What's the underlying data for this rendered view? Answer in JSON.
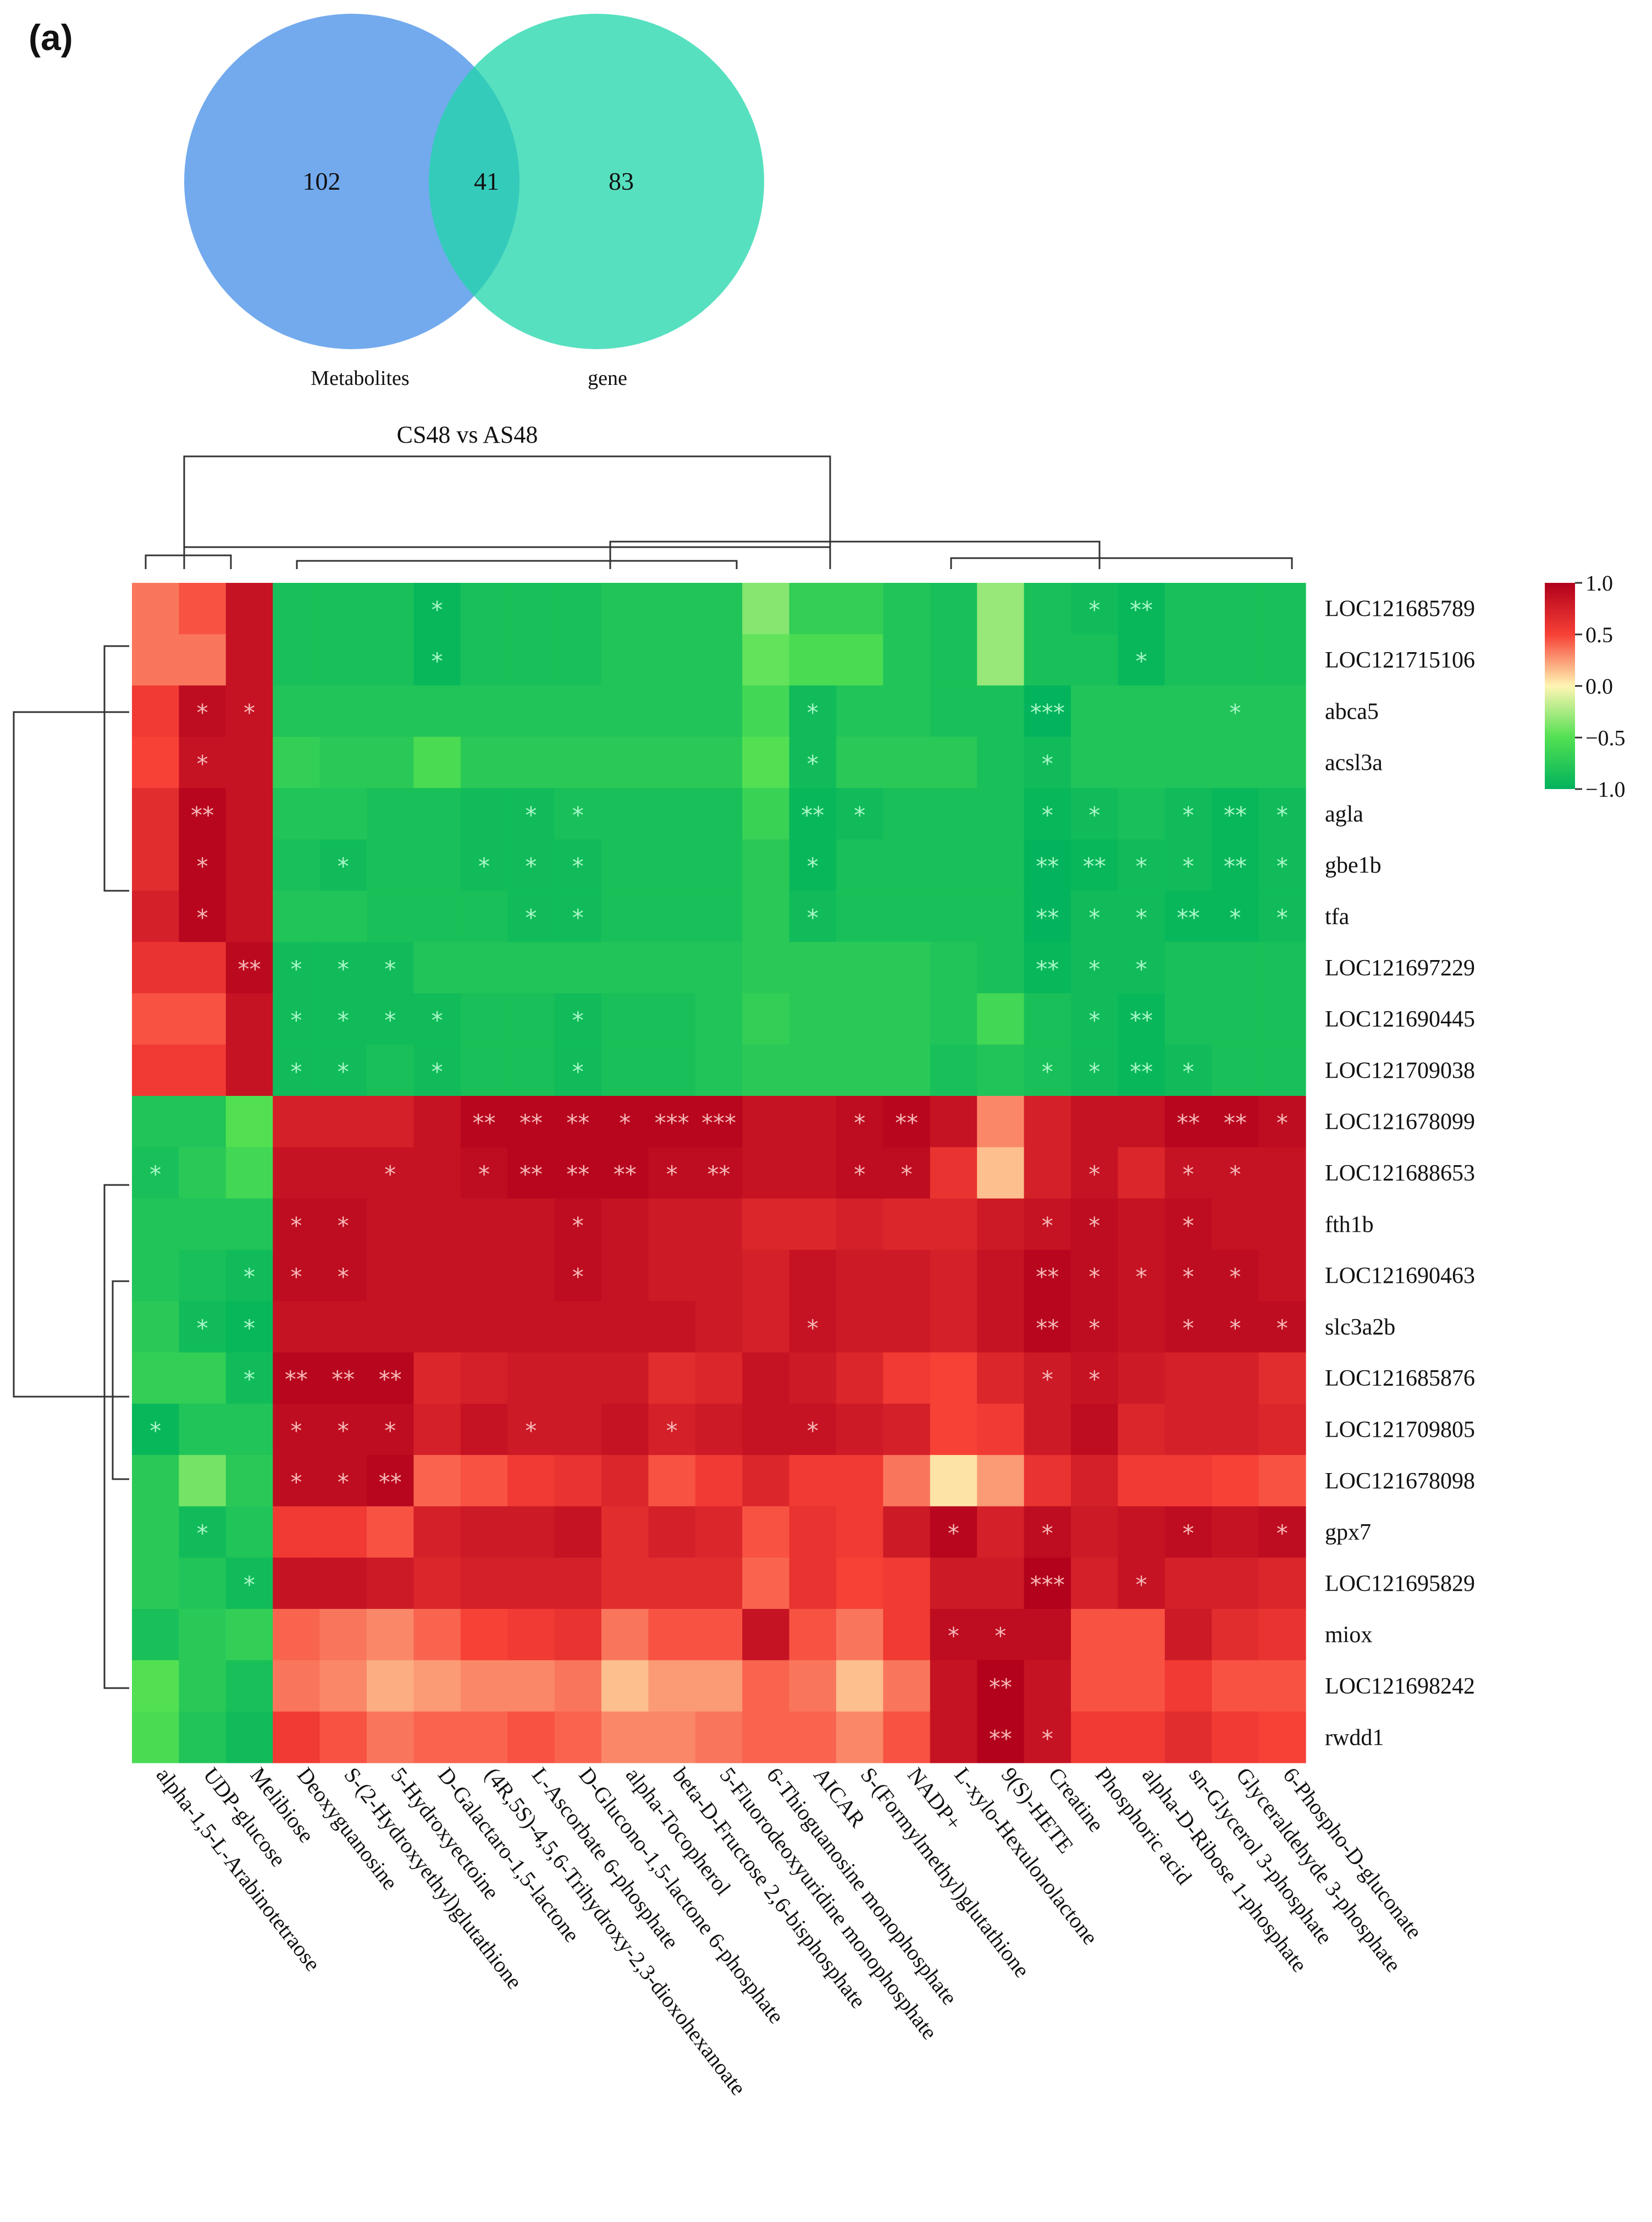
{
  "panel_label": "(a)",
  "venn": {
    "left_only": "102",
    "overlap": "41",
    "right_only": "83",
    "left_label": "Metabolites",
    "right_label": "gene",
    "left_color": "#5b9bea",
    "right_color": "#1fd6a9",
    "overlap_color": "#13b895"
  },
  "colors": {
    "scale_min": "#01b25c",
    "scale_low": "#52e052",
    "scale_mid": "#fff5b4",
    "scale_high": "#f74036",
    "scale_max": "#b0001b"
  },
  "chart_data": {
    "type": "heatmap",
    "title": "CS48 vs AS48",
    "colorbar": {
      "range": [
        -1.0,
        1.0
      ],
      "ticks": [
        "1.0",
        "0.5",
        "0.0",
        "−0.5",
        "−1.0"
      ]
    },
    "rows": [
      "LOC121685789",
      "LOC121715106",
      "abca5",
      "acsl3a",
      "agla",
      "gbe1b",
      "tfa",
      "LOC121697229",
      "LOC121690445",
      "LOC121709038",
      "LOC121678099",
      "LOC121688653",
      "fth1b",
      "LOC121690463",
      "slc3a2b",
      "LOC121685876",
      "LOC121709805",
      "LOC121678098",
      "gpx7",
      "LOC121695829",
      "miox",
      "LOC121698242",
      "rwdd1"
    ],
    "columns": [
      "alpha-1,5-L-Arabinotetraose",
      "UDP-glucose",
      "Melibiose",
      "Deoxyguanosine",
      "S-(2-Hydroxyethyl)glutathione",
      "5-Hydroxyectoine",
      "D-Galactaro-1,5-lactone",
      "(4R,5S)-4,5,6-Trihydroxy-2,3-dioxohexanoate",
      "L-Ascorbate 6-phosphate",
      "D-Glucono-1,5-lactone 6-phosphate",
      "alpha-Tocopherol",
      "beta-D-Fructose 2,6-bisphosphate",
      "5-Fluorodeoxyuridine monophosphate",
      "6-Thioguanosine monophosphate",
      "AICAR",
      "S-(Formylmethyl)glutathione",
      "NADP+",
      "L-xylo-Hexulonolactone",
      "9(S)-HETE",
      "Creatine",
      "Phosphoric acid",
      "alpha-D-Ribose 1-phosphate",
      "sn-Glycerol 3-phosphate",
      "Glyceraldehyde 3-phosphate",
      "6-Phospho-D-gluconate"
    ],
    "values": [
      [
        0.35,
        0.45,
        0.85,
        -0.85,
        -0.85,
        -0.85,
        -0.95,
        -0.85,
        -0.85,
        -0.85,
        -0.8,
        -0.8,
        -0.8,
        -0.35,
        -0.7,
        -0.7,
        -0.8,
        -0.85,
        -0.3,
        -0.85,
        -0.9,
        -0.95,
        -0.85,
        -0.85,
        -0.85
      ],
      [
        0.35,
        0.35,
        0.85,
        -0.85,
        -0.85,
        -0.85,
        -0.95,
        -0.85,
        -0.85,
        -0.85,
        -0.8,
        -0.8,
        -0.8,
        -0.45,
        -0.55,
        -0.55,
        -0.8,
        -0.85,
        -0.3,
        -0.85,
        -0.85,
        -0.95,
        -0.85,
        -0.85,
        -0.85
      ],
      [
        0.55,
        0.9,
        0.85,
        -0.8,
        -0.8,
        -0.8,
        -0.8,
        -0.8,
        -0.8,
        -0.8,
        -0.8,
        -0.8,
        -0.8,
        -0.6,
        -0.9,
        -0.8,
        -0.8,
        -0.85,
        -0.85,
        -0.98,
        -0.8,
        -0.8,
        -0.8,
        -0.8,
        -0.8
      ],
      [
        0.5,
        0.85,
        0.85,
        -0.7,
        -0.75,
        -0.75,
        -0.55,
        -0.75,
        -0.75,
        -0.75,
        -0.75,
        -0.75,
        -0.75,
        -0.5,
        -0.9,
        -0.75,
        -0.75,
        -0.75,
        -0.85,
        -0.9,
        -0.8,
        -0.8,
        -0.8,
        -0.8,
        -0.8
      ],
      [
        0.65,
        0.95,
        0.85,
        -0.8,
        -0.8,
        -0.85,
        -0.85,
        -0.9,
        -0.9,
        -0.85,
        -0.85,
        -0.85,
        -0.85,
        -0.65,
        -0.95,
        -0.9,
        -0.85,
        -0.85,
        -0.85,
        -0.95,
        -0.9,
        -0.85,
        -0.9,
        -0.95,
        -0.9
      ],
      [
        0.65,
        0.95,
        0.85,
        -0.85,
        -0.9,
        -0.85,
        -0.85,
        -0.9,
        -0.9,
        -0.9,
        -0.85,
        -0.85,
        -0.85,
        -0.75,
        -0.95,
        -0.85,
        -0.85,
        -0.85,
        -0.85,
        -0.98,
        -0.95,
        -0.9,
        -0.9,
        -0.95,
        -0.9
      ],
      [
        0.75,
        0.95,
        0.85,
        -0.8,
        -0.8,
        -0.85,
        -0.85,
        -0.85,
        -0.9,
        -0.9,
        -0.85,
        -0.85,
        -0.85,
        -0.75,
        -0.9,
        -0.85,
        -0.85,
        -0.85,
        -0.85,
        -0.98,
        -0.9,
        -0.9,
        -0.95,
        -0.95,
        -0.9
      ],
      [
        0.6,
        0.6,
        0.92,
        -0.9,
        -0.9,
        -0.9,
        -0.8,
        -0.8,
        -0.8,
        -0.8,
        -0.8,
        -0.8,
        -0.8,
        -0.75,
        -0.75,
        -0.75,
        -0.75,
        -0.8,
        -0.85,
        -0.95,
        -0.9,
        -0.9,
        -0.85,
        -0.85,
        -0.85
      ],
      [
        0.45,
        0.45,
        0.85,
        -0.9,
        -0.9,
        -0.9,
        -0.9,
        -0.85,
        -0.85,
        -0.9,
        -0.85,
        -0.85,
        -0.8,
        -0.7,
        -0.75,
        -0.75,
        -0.75,
        -0.8,
        -0.6,
        -0.85,
        -0.9,
        -0.95,
        -0.85,
        -0.85,
        -0.85
      ],
      [
        0.55,
        0.55,
        0.85,
        -0.9,
        -0.9,
        -0.85,
        -0.9,
        -0.85,
        -0.85,
        -0.9,
        -0.85,
        -0.85,
        -0.8,
        -0.75,
        -0.75,
        -0.75,
        -0.75,
        -0.85,
        -0.8,
        -0.85,
        -0.9,
        -0.95,
        -0.9,
        -0.85,
        -0.85
      ],
      [
        -0.8,
        -0.8,
        -0.5,
        0.75,
        0.75,
        0.75,
        0.85,
        0.95,
        0.95,
        0.95,
        0.95,
        0.95,
        0.95,
        0.85,
        0.85,
        0.9,
        0.95,
        0.85,
        0.3,
        0.75,
        0.85,
        0.85,
        0.95,
        0.95,
        0.9
      ],
      [
        -0.85,
        -0.75,
        -0.6,
        0.85,
        0.85,
        0.85,
        0.85,
        0.9,
        0.95,
        0.95,
        0.95,
        0.9,
        0.9,
        0.85,
        0.85,
        0.9,
        0.9,
        0.6,
        0.15,
        0.75,
        0.85,
        0.7,
        0.85,
        0.85,
        0.85
      ],
      [
        -0.8,
        -0.8,
        -0.8,
        0.9,
        0.9,
        0.85,
        0.85,
        0.85,
        0.85,
        0.9,
        0.85,
        0.8,
        0.8,
        0.7,
        0.7,
        0.75,
        0.7,
        0.7,
        0.8,
        0.85,
        0.9,
        0.85,
        0.9,
        0.85,
        0.85
      ],
      [
        -0.8,
        -0.85,
        -0.9,
        0.9,
        0.9,
        0.85,
        0.85,
        0.85,
        0.85,
        0.9,
        0.85,
        0.8,
        0.8,
        0.75,
        0.85,
        0.8,
        0.8,
        0.75,
        0.85,
        0.95,
        0.9,
        0.85,
        0.9,
        0.9,
        0.85
      ],
      [
        -0.75,
        -0.9,
        -0.95,
        0.85,
        0.85,
        0.85,
        0.85,
        0.85,
        0.85,
        0.85,
        0.85,
        0.85,
        0.8,
        0.75,
        0.85,
        0.8,
        0.8,
        0.75,
        0.85,
        0.95,
        0.9,
        0.85,
        0.9,
        0.9,
        0.9
      ],
      [
        -0.7,
        -0.7,
        -0.9,
        0.95,
        0.95,
        0.95,
        0.7,
        0.75,
        0.8,
        0.8,
        0.8,
        0.65,
        0.7,
        0.85,
        0.8,
        0.7,
        0.55,
        0.5,
        0.7,
        0.8,
        0.85,
        0.8,
        0.75,
        0.75,
        0.65
      ],
      [
        -0.95,
        -0.8,
        -0.8,
        0.9,
        0.9,
        0.9,
        0.75,
        0.85,
        0.8,
        0.8,
        0.85,
        0.75,
        0.8,
        0.85,
        0.85,
        0.8,
        0.75,
        0.5,
        0.55,
        0.8,
        0.9,
        0.7,
        0.75,
        0.75,
        0.7
      ],
      [
        -0.75,
        -0.4,
        -0.75,
        0.9,
        0.9,
        0.95,
        0.4,
        0.45,
        0.55,
        0.6,
        0.7,
        0.45,
        0.55,
        0.7,
        0.55,
        0.55,
        0.35,
        0.05,
        0.25,
        0.6,
        0.75,
        0.55,
        0.55,
        0.5,
        0.45
      ],
      [
        -0.75,
        -0.9,
        -0.8,
        0.55,
        0.55,
        0.45,
        0.75,
        0.8,
        0.8,
        0.85,
        0.65,
        0.75,
        0.7,
        0.45,
        0.6,
        0.55,
        0.8,
        0.95,
        0.75,
        0.9,
        0.8,
        0.85,
        0.9,
        0.85,
        0.9
      ],
      [
        -0.75,
        -0.8,
        -0.9,
        0.85,
        0.85,
        0.8,
        0.7,
        0.75,
        0.75,
        0.75,
        0.65,
        0.65,
        0.65,
        0.4,
        0.6,
        0.5,
        0.55,
        0.8,
        0.8,
        0.98,
        0.75,
        0.85,
        0.75,
        0.75,
        0.7
      ],
      [
        -0.85,
        -0.75,
        -0.7,
        0.4,
        0.35,
        0.3,
        0.4,
        0.5,
        0.55,
        0.6,
        0.35,
        0.45,
        0.45,
        0.85,
        0.45,
        0.35,
        0.55,
        0.9,
        0.9,
        0.9,
        0.45,
        0.45,
        0.8,
        0.65,
        0.6
      ],
      [
        -0.5,
        -0.75,
        -0.85,
        0.35,
        0.3,
        0.2,
        0.25,
        0.3,
        0.3,
        0.35,
        0.15,
        0.25,
        0.25,
        0.4,
        0.35,
        0.15,
        0.35,
        0.85,
        0.98,
        0.85,
        0.45,
        0.45,
        0.55,
        0.45,
        0.45
      ],
      [
        -0.55,
        -0.8,
        -0.9,
        0.55,
        0.45,
        0.35,
        0.4,
        0.4,
        0.45,
        0.4,
        0.3,
        0.3,
        0.35,
        0.4,
        0.4,
        0.3,
        0.45,
        0.85,
        0.98,
        0.85,
        0.55,
        0.55,
        0.65,
        0.55,
        0.5
      ]
    ],
    "significance": [
      [
        "",
        "",
        "",
        "",
        "",
        "",
        "*",
        "",
        "",
        "",
        "",
        "",
        "",
        "",
        "",
        "",
        "",
        "",
        "",
        "",
        "*",
        "**",
        "",
        "",
        ""
      ],
      [
        "",
        "",
        "",
        "",
        "",
        "",
        "*",
        "",
        "",
        "",
        "",
        "",
        "",
        "",
        "",
        "",
        "",
        "",
        "",
        "",
        "",
        "*",
        "",
        "",
        ""
      ],
      [
        "",
        "*",
        "*",
        "",
        "",
        "",
        "",
        "",
        "",
        "",
        "",
        "",
        "",
        "",
        "*",
        "",
        "",
        "",
        "",
        "***",
        "",
        "",
        "",
        "*",
        ""
      ],
      [
        "",
        "*",
        "",
        "",
        "",
        "",
        "",
        "",
        "",
        "",
        "",
        "",
        "",
        "",
        "*",
        "",
        "",
        "",
        "",
        "*",
        "",
        "",
        "",
        "",
        ""
      ],
      [
        "",
        "**",
        "",
        "",
        "",
        "",
        "",
        "",
        "*",
        "*",
        "",
        "",
        "",
        "",
        "**",
        "*",
        "",
        "",
        "",
        "*",
        "*",
        "",
        "*",
        "**",
        "*"
      ],
      [
        "",
        "*",
        "",
        "",
        "*",
        "",
        "",
        "*",
        "*",
        "*",
        "",
        "",
        "",
        "",
        "*",
        "",
        "",
        "",
        "",
        "**",
        "**",
        "*",
        "*",
        "**",
        "*"
      ],
      [
        "",
        "*",
        "",
        "",
        "",
        "",
        "",
        "",
        "*",
        "*",
        "",
        "",
        "",
        "",
        "*",
        "",
        "",
        "",
        "",
        "**",
        "*",
        "*",
        "**",
        "*",
        "*"
      ],
      [
        "",
        "",
        "**",
        "*",
        "*",
        "*",
        "",
        "",
        "",
        "",
        "",
        "",
        "",
        "",
        "",
        "",
        "",
        "",
        "",
        "**",
        "*",
        "*",
        "",
        "",
        ""
      ],
      [
        "",
        "",
        "",
        "*",
        "*",
        "*",
        "*",
        "",
        "",
        "*",
        "",
        "",
        "",
        "",
        "",
        "",
        "",
        "",
        "",
        "",
        "*",
        "**",
        "",
        "",
        ""
      ],
      [
        "",
        "",
        "",
        "*",
        "*",
        "",
        "*",
        "",
        "",
        "*",
        "",
        "",
        "",
        "",
        "",
        "",
        "",
        "",
        "",
        "*",
        "*",
        "**",
        "*",
        "",
        ""
      ],
      [
        "",
        "",
        "",
        "",
        "",
        "",
        "",
        "**",
        "**",
        "**",
        "*",
        "***",
        "***",
        "",
        "",
        "*",
        "**",
        "",
        "",
        "",
        "",
        "",
        "**",
        "**",
        "*"
      ],
      [
        "*",
        "",
        "",
        "",
        "",
        "*",
        "",
        "*",
        "**",
        "**",
        "**",
        "*",
        "**",
        "",
        "",
        "*",
        "*",
        "",
        "",
        "",
        "*",
        "",
        "*",
        "*",
        ""
      ],
      [
        "",
        "",
        "",
        "*",
        "*",
        "",
        "",
        "",
        "",
        "*",
        "",
        "",
        "",
        "",
        "",
        "",
        "",
        "",
        "",
        "*",
        "*",
        "",
        "*",
        "",
        ""
      ],
      [
        "",
        "",
        "*",
        "*",
        "*",
        "",
        "",
        "",
        "",
        "*",
        "",
        "",
        "",
        "",
        "",
        "",
        "",
        "",
        "",
        "**",
        "*",
        "*",
        "*",
        "*",
        ""
      ],
      [
        "",
        "*",
        "*",
        "",
        "",
        "",
        "",
        "",
        "",
        "",
        "",
        "",
        "",
        "",
        "*",
        "",
        "",
        "",
        "",
        "**",
        "*",
        "",
        "*",
        "*",
        "*"
      ],
      [
        "",
        "",
        "*",
        "**",
        "**",
        "**",
        "",
        "",
        "",
        "",
        "",
        "",
        "",
        "",
        "",
        "",
        "",
        "",
        "",
        "*",
        "*",
        "",
        "",
        "",
        ""
      ],
      [
        "*",
        "",
        "",
        "*",
        "*",
        "*",
        "",
        "",
        "*",
        "",
        "",
        "*",
        "",
        "",
        "*",
        "",
        "",
        "",
        "",
        "",
        "",
        "",
        "",
        "",
        ""
      ],
      [
        "",
        "",
        "",
        "*",
        "*",
        "**",
        "",
        "",
        "",
        "",
        "",
        "",
        "",
        "",
        "",
        "",
        "",
        "",
        "",
        "",
        "",
        "",
        "",
        "",
        ""
      ],
      [
        "",
        "*",
        "",
        "",
        "",
        "",
        "",
        "",
        "",
        "",
        "",
        "",
        "",
        "",
        "",
        "",
        "",
        "*",
        "",
        "*",
        "",
        "",
        "*",
        "",
        "*"
      ],
      [
        "",
        "",
        "*",
        "",
        "",
        "",
        "",
        "",
        "",
        "",
        "",
        "",
        "",
        "",
        "",
        "",
        "",
        "",
        "",
        "***",
        "",
        "*",
        "",
        "",
        ""
      ],
      [
        "",
        "",
        "",
        "",
        "",
        "",
        "",
        "",
        "",
        "",
        "",
        "",
        "",
        "",
        "",
        "",
        "",
        "*",
        "*",
        "",
        "",
        "",
        "",
        "",
        ""
      ],
      [
        "",
        "",
        "",
        "",
        "",
        "",
        "",
        "",
        "",
        "",
        "",
        "",
        "",
        "",
        "",
        "",
        "",
        "",
        "**",
        "",
        "",
        "",
        "",
        "",
        ""
      ],
      [
        "",
        "",
        "",
        "",
        "",
        "",
        "",
        "",
        "",
        "",
        "",
        "",
        "",
        "",
        "",
        "",
        "",
        "",
        "**",
        "*",
        "",
        "",
        "",
        "",
        ""
      ]
    ]
  }
}
